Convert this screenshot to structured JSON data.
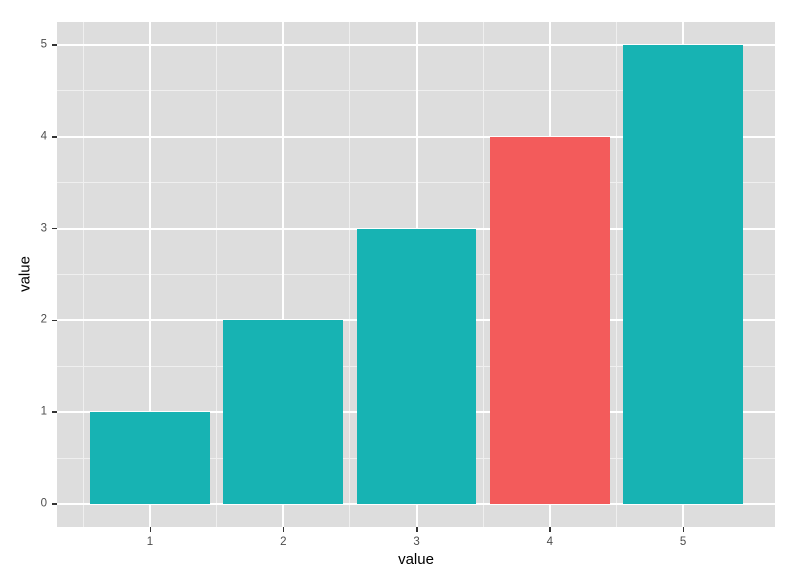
{
  "chart_data": {
    "type": "bar",
    "title": "",
    "xlabel": "value",
    "ylabel": "value",
    "x": [
      1,
      2,
      3,
      4,
      5
    ],
    "values": [
      1,
      2,
      3,
      4,
      5
    ],
    "bar_colors": [
      "#17B3B3",
      "#17B3B3",
      "#17B3B3",
      "#F35B5B",
      "#17B3B3"
    ],
    "highlighted_bar_x": 4,
    "bar_width": 0.9,
    "xlim": [
      0.302,
      5.69
    ],
    "ylim": [
      -0.25,
      5.25
    ],
    "x_ticks": [
      1,
      2,
      3,
      4,
      5
    ],
    "x_tick_labels": [
      "1",
      "2",
      "3",
      "4",
      "5"
    ],
    "y_ticks": [
      0,
      1,
      2,
      3,
      4,
      5
    ],
    "y_tick_labels": [
      "0",
      "1",
      "2",
      "3",
      "4",
      "5"
    ],
    "x_minor_ticks": [
      0.5,
      1.5,
      2.5,
      3.5,
      4.5
    ],
    "y_minor_ticks": [
      0.5,
      1.5,
      2.5,
      3.5,
      4.5
    ],
    "grid": true,
    "minor_grid": true,
    "legend_position": "none",
    "style": "ggplot-theme-gray",
    "colors": {
      "bar_default": "#17B3B3",
      "bar_highlight": "#F35B5B",
      "figure_bg": "#FFFFFF",
      "panel_bg": "#DDDDDD",
      "grid_major": "#FFFFFF",
      "grid_minor": "#EFEFEF",
      "tick_mark": "#333333",
      "tick_label": "#4D4D4D",
      "axis_title": "#000000"
    }
  }
}
